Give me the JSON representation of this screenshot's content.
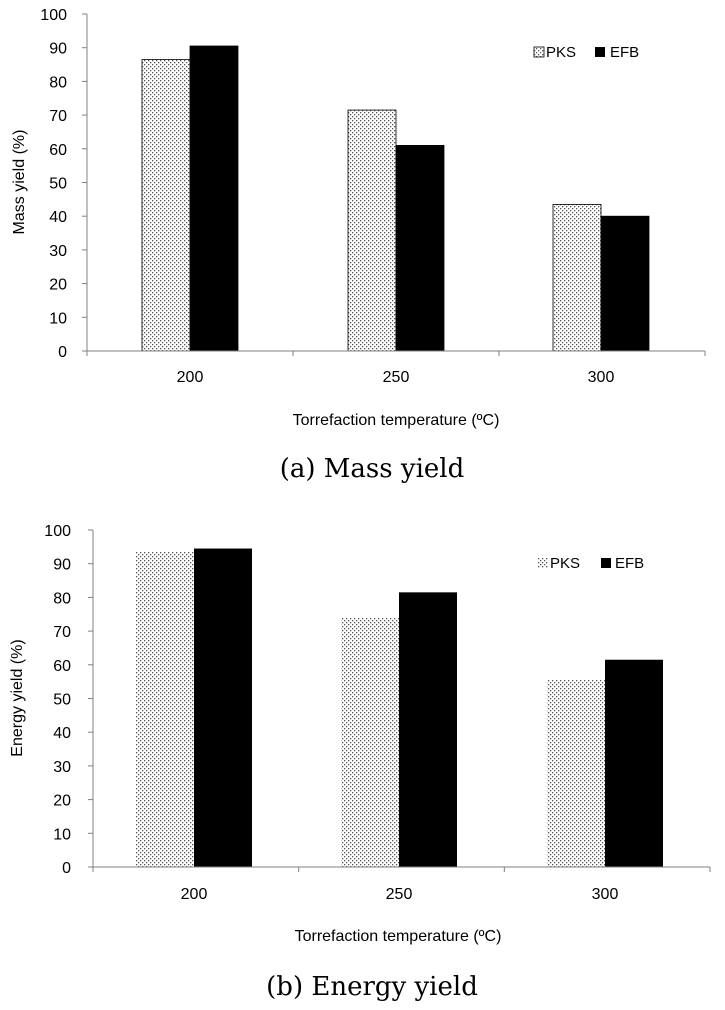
{
  "chart_data": [
    {
      "type": "bar",
      "title": "",
      "caption": "(a) Mass yield",
      "categories": [
        "200",
        "250",
        "300"
      ],
      "series": [
        {
          "name": "PKS",
          "values": [
            86.5,
            71.5,
            43.5
          ],
          "pattern": "dots"
        },
        {
          "name": "EFB",
          "values": [
            90.5,
            61,
            40
          ],
          "pattern": "solid"
        }
      ],
      "xlabel": "Torrefaction  temperature (ºC)",
      "ylabel": "Mass yield (%)",
      "ylim": [
        0,
        100
      ],
      "yticks": [
        "0",
        "10",
        "20",
        "30",
        "40",
        "50",
        "60",
        "70",
        "80",
        "90",
        "100"
      ],
      "grid": false,
      "legend": "top-right"
    },
    {
      "type": "bar",
      "title": "",
      "caption": "(b) Energy yield",
      "categories": [
        "200",
        "250",
        "300"
      ],
      "series": [
        {
          "name": "PKS",
          "values": [
            93.5,
            74,
            55.5
          ],
          "pattern": "dots"
        },
        {
          "name": "EFB",
          "values": [
            94.5,
            81.5,
            61.5
          ],
          "pattern": "solid"
        }
      ],
      "xlabel": "Torrefaction  temperature (ºC)",
      "ylabel": "Energy yield (%)",
      "ylim": [
        0,
        100
      ],
      "yticks": [
        "0",
        "10",
        "20",
        "30",
        "40",
        "50",
        "60",
        "70",
        "80",
        "90",
        "100"
      ],
      "grid": false,
      "legend": "top-right"
    }
  ],
  "colors": {
    "solid": "#000000",
    "dots": "#555555",
    "axis": "#808080"
  }
}
